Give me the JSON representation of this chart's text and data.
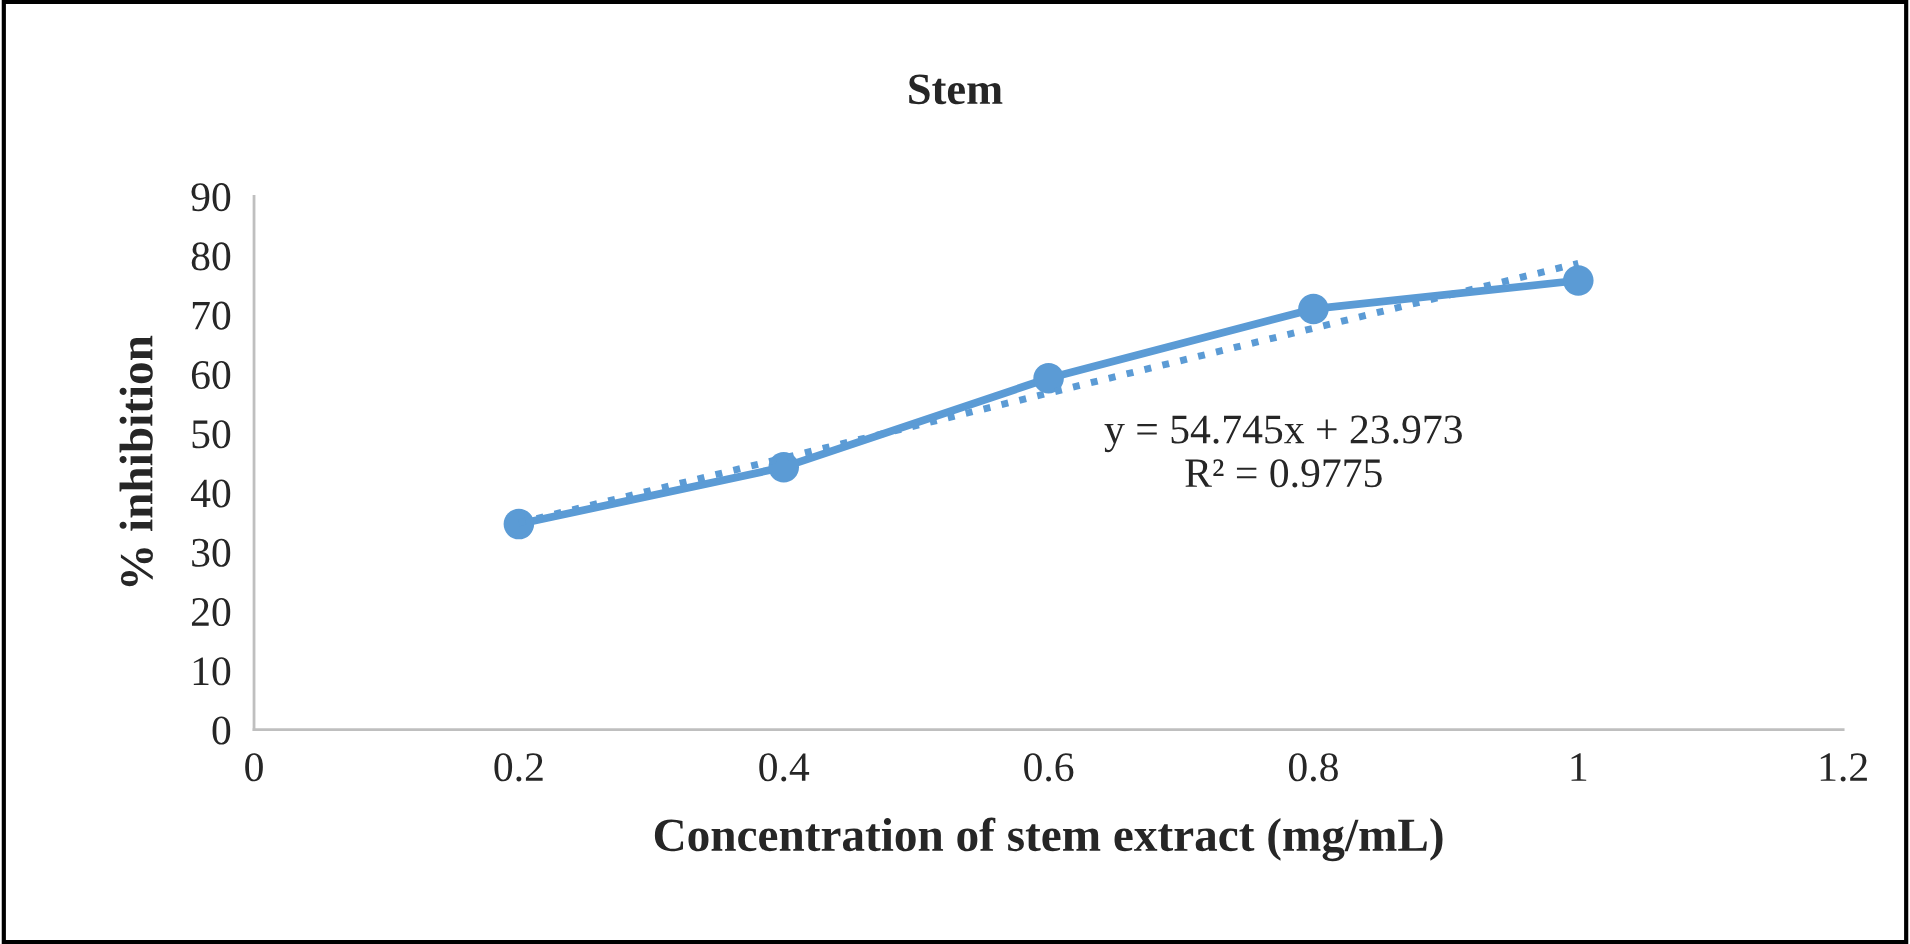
{
  "chart_data": {
    "type": "line",
    "title": "Stem",
    "xlabel": "Concentration of stem extract (mg/mL)",
    "ylabel": "% inhibition",
    "x": [
      0.2,
      0.4,
      0.6,
      0.8,
      1.0
    ],
    "series": [
      {
        "color": "#5b9bd5",
        "values": [
          34.7,
          44.3,
          59.3,
          71.0,
          75.8
        ],
        "marker": "circle",
        "line_style": "solid"
      },
      {
        "type": "line",
        "color": "#5b9bd5",
        "x": [
          0.2,
          1.0
        ],
        "values": [
          34.9,
          78.7
        ],
        "marker": "none",
        "line_style": "dotted"
      }
    ],
    "annotations": [
      "y = 54.745x + 23.973\nR² = 0.9775"
    ],
    "xlim": [
      0,
      1.2
    ],
    "xticks": [
      0,
      0.2,
      0.4,
      0.6,
      0.8,
      1,
      1.2
    ],
    "ylim": [
      0,
      90
    ],
    "yticks": [
      0,
      10,
      20,
      30,
      40,
      50,
      60,
      70,
      80,
      90
    ],
    "grid": false,
    "legend": false
  }
}
